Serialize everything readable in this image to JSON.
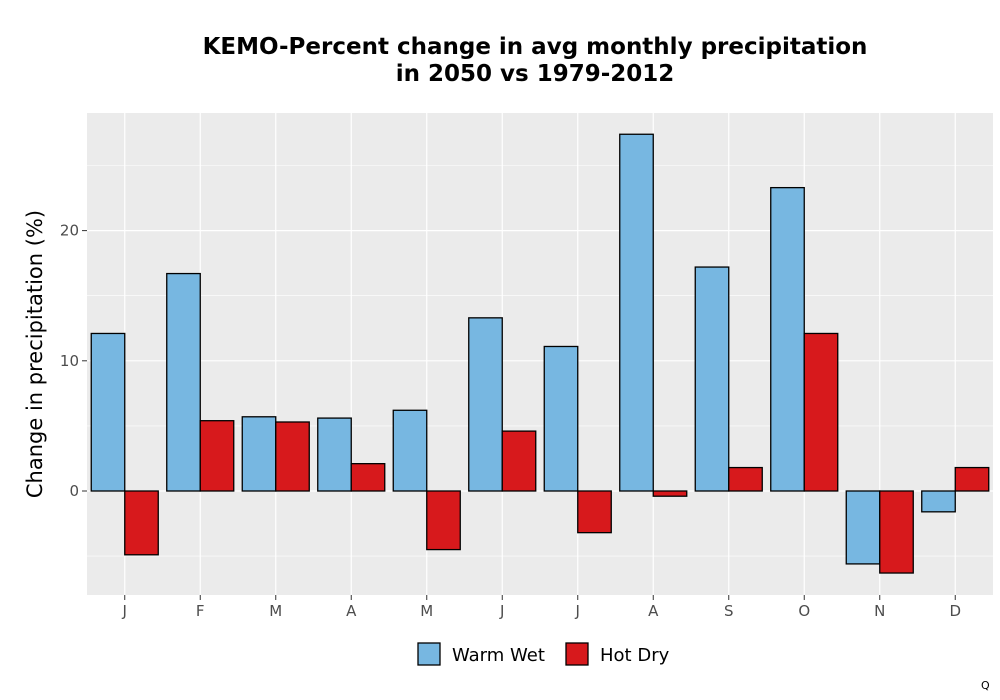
{
  "chart_data": {
    "type": "bar",
    "title_lines": [
      "KEMO-Percent change in avg monthly precipitation",
      "in 2050 vs 1979-2012"
    ],
    "xlabel": "",
    "ylabel": "Change in precipitation (%)",
    "categories": [
      "J",
      "F",
      "M",
      "A",
      "M",
      "J",
      "J",
      "A",
      "S",
      "O",
      "N",
      "D"
    ],
    "series": [
      {
        "name": "Warm Wet",
        "color": "#77b7e1",
        "values": [
          12.1,
          16.7,
          5.7,
          5.6,
          6.2,
          13.3,
          11.1,
          27.4,
          17.2,
          23.3,
          -5.6,
          -1.6
        ]
      },
      {
        "name": "Hot Dry",
        "color": "#d7191c",
        "values": [
          -4.9,
          5.4,
          5.3,
          2.1,
          -4.5,
          4.6,
          -3.2,
          -0.4,
          1.8,
          12.1,
          -6.3,
          1.8
        ]
      }
    ],
    "ylim": [
      -8,
      29
    ],
    "yticks": [
      0,
      10,
      20
    ],
    "grid": true,
    "legend_position": "bottom"
  },
  "corner_mark": "Q"
}
